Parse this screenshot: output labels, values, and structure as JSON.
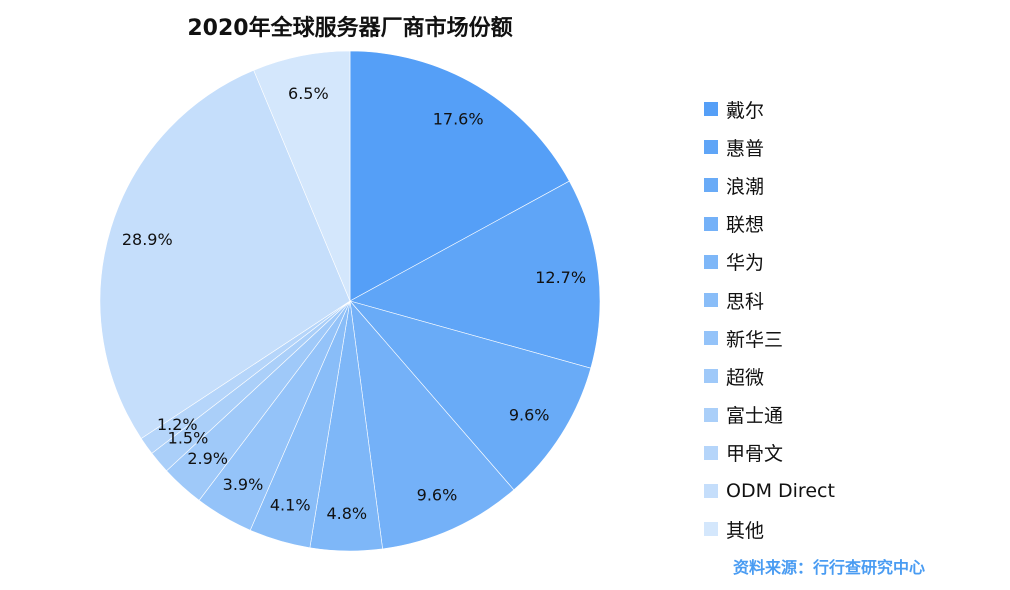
{
  "chart_data": {
    "type": "pie",
    "title": "2020年全球服务器厂商市场份额",
    "labels": [
      "戴尔",
      "惠普",
      "浪潮",
      "联想",
      "华为",
      "思科",
      "新华三",
      "超微",
      "富士通",
      "甲骨文",
      "ODM Direct",
      "其他"
    ],
    "values": [
      17.6,
      12.7,
      9.6,
      9.6,
      4.8,
      4.1,
      3.9,
      2.9,
      1.5,
      1.2,
      28.9,
      6.5
    ],
    "data_labels": [
      "17.6%",
      "12.7%",
      "9.6%",
      "9.6%",
      "4.8%",
      "4.1%",
      "3.9%",
      "2.9%",
      "1.5%",
      "1.2%",
      "28.9%",
      "6.5%"
    ],
    "colors": [
      "#559ff7",
      "#5fa5f7",
      "#69abf7",
      "#74b1f8",
      "#7eb7f8",
      "#89bdf8",
      "#94c3f9",
      "#9fc9f9",
      "#aacff9",
      "#b5d5fa",
      "#c5defb",
      "#d4e7fc"
    ],
    "legend_position": "right",
    "start_angle": "top, clockwise"
  },
  "source": "资料来源：行行查研究中心"
}
